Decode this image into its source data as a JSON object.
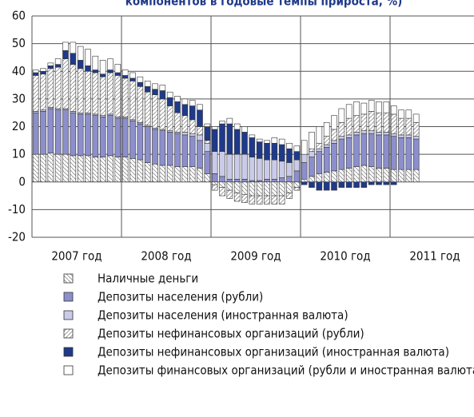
{
  "chart_data": {
    "type": "stacked_bar",
    "title": "компонентов в годовые темпы прироста, %)",
    "categories": [
      null,
      null,
      null,
      null,
      null,
      null,
      null,
      null,
      null,
      null,
      null,
      null,
      null,
      null,
      null,
      null,
      null,
      null,
      null,
      null,
      null,
      null,
      null,
      null,
      null,
      null,
      null,
      null,
      null,
      null,
      null,
      null,
      null,
      null,
      null,
      null,
      null,
      null,
      null,
      null,
      null,
      null,
      null,
      null,
      null,
      null,
      null,
      null,
      null,
      null,
      null,
      null
    ],
    "year_labels": [
      "2007 год",
      "2008 год",
      "2009 год",
      "2010 год",
      "2011 год"
    ],
    "ylim": [
      -20,
      60
    ],
    "yticks": [
      -20,
      -10,
      0,
      10,
      20,
      30,
      40,
      50,
      60
    ],
    "grid": true,
    "series": [
      {
        "name": "Наличные деньги",
        "color": "#ffffff",
        "pattern": "backslash",
        "values": [
          10,
          10,
          10.5,
          10,
          10,
          9.5,
          9.5,
          9.5,
          9,
          9,
          9.5,
          9,
          9,
          8.5,
          8,
          7,
          6.5,
          6,
          6,
          5.5,
          5.5,
          5.5,
          5,
          3,
          -1,
          -2,
          -3,
          -4,
          -4.5,
          -5,
          -5,
          -5,
          -5,
          -5,
          -4,
          -2,
          1,
          2,
          3,
          3.5,
          4,
          4.5,
          5,
          5.5,
          6,
          5.5,
          5,
          5,
          4.5,
          4.5,
          4.5,
          4.5
        ]
      },
      {
        "name": "Депозиты населения (рубли)",
        "color": "#8c8fcc",
        "values": [
          15,
          15.5,
          16,
          16,
          16,
          15.5,
          15,
          15,
          15,
          14.5,
          14.5,
          14,
          14,
          13.5,
          13,
          13,
          12.5,
          12.5,
          12,
          12,
          11.5,
          11,
          10,
          8,
          3,
          2,
          1,
          1,
          1,
          0.5,
          0.5,
          1,
          1,
          1.5,
          2,
          4,
          6,
          7,
          8,
          9,
          10,
          11,
          11,
          11.5,
          11.5,
          12,
          12,
          12,
          12,
          11.5,
          11.5,
          11
        ]
      },
      {
        "name": "Депозиты населения (иностранная валюта)",
        "color": "#c9cbe8",
        "values": [
          0.5,
          0.5,
          0.5,
          0.5,
          0.5,
          0.5,
          0.5,
          0.5,
          0.5,
          0.5,
          0.5,
          0.5,
          0.5,
          0.5,
          0.5,
          0.5,
          0.5,
          0.5,
          0.5,
          0.5,
          1,
          1,
          2,
          3,
          8,
          9,
          9,
          9,
          9,
          8.5,
          8,
          7,
          7,
          6,
          5,
          4,
          3,
          2,
          1,
          1,
          1,
          1,
          1,
          1,
          1,
          1,
          1,
          1,
          1,
          1,
          1,
          1
        ]
      },
      {
        "name": "Депозиты нефинансовых организаций (рубли)",
        "color": "#ffffff",
        "pattern": "slash",
        "values": [
          13,
          13,
          14,
          15,
          18,
          17,
          16,
          15,
          15,
          14,
          15,
          15,
          14,
          14,
          13,
          12,
          12,
          11,
          9,
          7,
          6,
          5,
          3,
          1,
          -2,
          -3,
          -3,
          -3,
          -3,
          -3,
          -3,
          -3,
          -3,
          -3,
          -2,
          -1,
          0,
          1,
          2,
          3,
          4,
          5,
          6,
          6,
          6,
          7,
          7,
          7,
          7,
          6,
          6,
          5
        ]
      },
      {
        "name": "Депозиты нефинансовых организаций (иностранная валюта)",
        "color": "#1f3a8a",
        "values": [
          1,
          1,
          1,
          1,
          3,
          4,
          3,
          2,
          1,
          1,
          1,
          1,
          1,
          1,
          1.5,
          2,
          2,
          3,
          3,
          4,
          4,
          5,
          6,
          5,
          8,
          10,
          11,
          9,
          8,
          7,
          6,
          6,
          6,
          6,
          5,
          3,
          -1,
          -2,
          -3,
          -3,
          -3,
          -2,
          -2,
          -2,
          -2,
          -1,
          -1,
          -1,
          -1,
          0,
          0,
          0
        ]
      },
      {
        "name": "Депозиты финансовых организаций (рубли и иностранная валюта)",
        "color": "#ffffff",
        "values": [
          1,
          1,
          1,
          2,
          3,
          4,
          5,
          6,
          5,
          5,
          4,
          3,
          2,
          2,
          2,
          2,
          2,
          2,
          2,
          2,
          2,
          2,
          2,
          1,
          1,
          1,
          2,
          2,
          2,
          1,
          1,
          1,
          2,
          2,
          2,
          2,
          5,
          6,
          6,
          5,
          5,
          5,
          5,
          5,
          4,
          4,
          4,
          4,
          3,
          3,
          3,
          3
        ]
      }
    ]
  }
}
